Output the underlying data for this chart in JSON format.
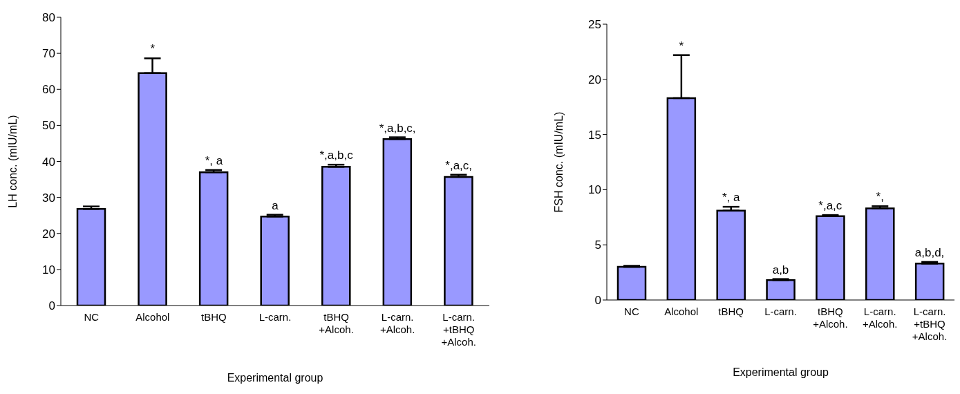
{
  "chart_data": [
    {
      "type": "bar",
      "xlabel": "Experimental group",
      "ylabel": "LH conc. (mIU/mL)",
      "categories": [
        "NC",
        "Alcohol",
        "tBHQ",
        "L-carn.",
        "tBHQ\n+Alcoh.",
        "L-carn.\n+Alcoh.",
        "L-carn.\n+tBHQ\n+Alcoh."
      ],
      "color": "#9999ff",
      "values": [
        26.8,
        64.5,
        37.0,
        24.7,
        38.5,
        46.2,
        35.7
      ],
      "errors": [
        [
          26.8,
          27.5
        ],
        [
          64.5,
          68.6
        ],
        [
          37.0,
          37.6
        ],
        [
          24.7,
          25.2
        ],
        [
          38.5,
          39.1
        ],
        [
          46.2,
          46.7
        ],
        [
          35.7,
          36.3
        ]
      ],
      "ylim": [
        0,
        80
      ],
      "yticks": [
        0,
        10,
        20,
        30,
        40,
        50,
        60,
        70,
        80
      ],
      "grid": false,
      "legend": false,
      "annotations": [
        {
          "text": "*",
          "x": "Alcohol",
          "y": 68.6
        },
        {
          "text": "*, a",
          "x": "tBHQ",
          "y": 37.6
        },
        {
          "text": "a",
          "x": "L-carn.",
          "y": 25.2
        },
        {
          "text": "*,a,b,c",
          "x": "tBHQ\n+Alcoh.",
          "y": 39.1
        },
        {
          "text": "*,a,b,c,",
          "x": "L-carn.\n+Alcoh.",
          "y": 46.7
        },
        {
          "text": "*,a,c,",
          "x": "L-carn.\n+tBHQ\n+Alcoh.",
          "y": 36.3
        }
      ]
    },
    {
      "type": "bar",
      "xlabel": "Experimental group",
      "ylabel": "FSH conc. (mIU/mL)",
      "categories": [
        "NC",
        "Alcohol",
        "tBHQ",
        "L-carn.",
        "tBHQ\n+Alcoh.",
        "L-carn.\n+Alcoh.",
        "L-carn.\n+tBHQ\n+Alcoh."
      ],
      "color": "#9999ff",
      "values": [
        3.0,
        18.3,
        8.1,
        1.8,
        7.6,
        8.3,
        3.3
      ],
      "errors": [
        [
          3.0,
          3.1
        ],
        [
          18.3,
          22.2
        ],
        [
          8.1,
          8.45
        ],
        [
          1.8,
          1.9
        ],
        [
          7.6,
          7.7
        ],
        [
          8.3,
          8.5
        ],
        [
          3.3,
          3.45
        ]
      ],
      "ylim": [
        0,
        25
      ],
      "yticks": [
        0,
        5,
        10,
        15,
        20,
        25
      ],
      "grid": false,
      "legend": false,
      "annotations": [
        {
          "text": "*",
          "x": "Alcohol",
          "y": 22.2
        },
        {
          "text": "*, a",
          "x": "tBHQ",
          "y": 8.45
        },
        {
          "text": "a,b",
          "x": "L-carn.",
          "y": 1.9
        },
        {
          "text": "*,a,c",
          "x": "tBHQ\n+Alcoh.",
          "y": 7.7
        },
        {
          "text": "*,",
          "x": "L-carn.\n+Alcoh.",
          "y": 8.5
        },
        {
          "text": "a,b,d,",
          "x": "L-carn.\n+tBHQ\n+Alcoh.",
          "y": 3.45
        }
      ]
    }
  ]
}
